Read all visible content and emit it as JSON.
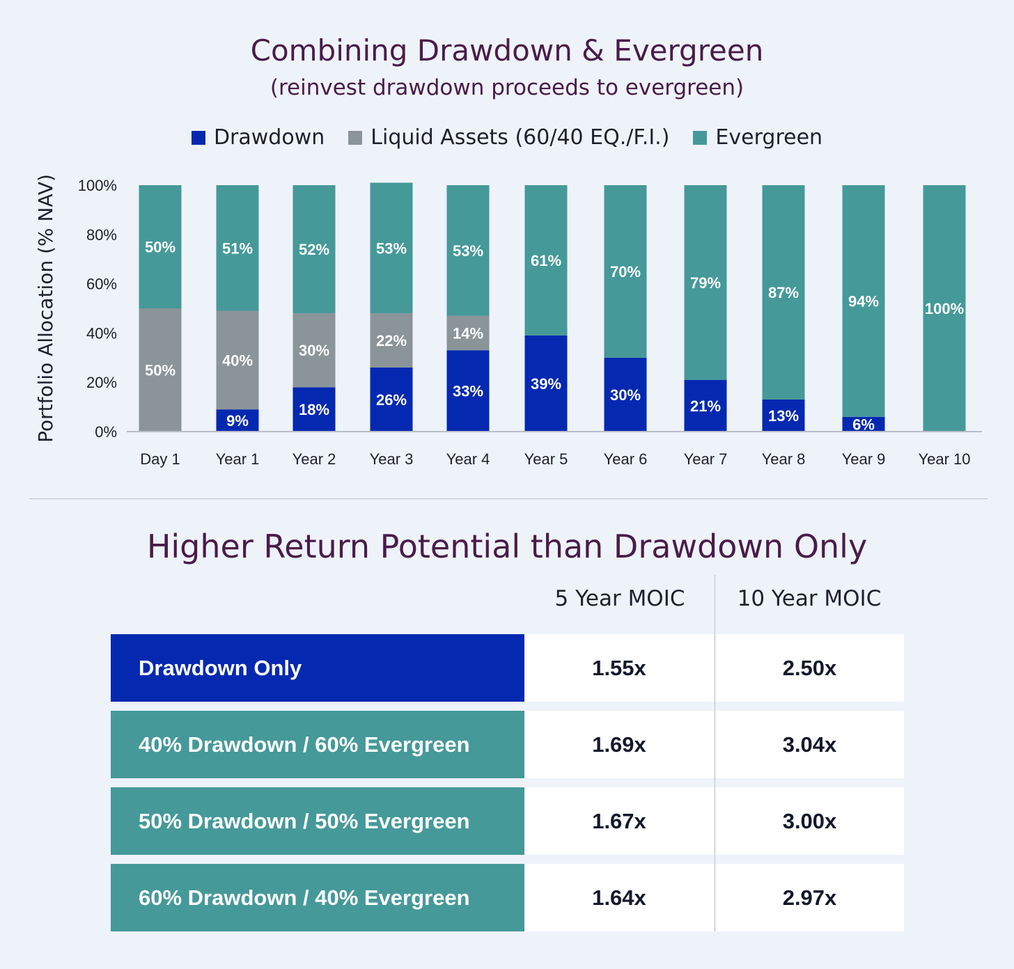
{
  "chart_data": {
    "type": "bar",
    "stacked": true,
    "title": "Combining Drawdown & Evergreen",
    "subtitle": "(reinvest drawdown proceeds to evergreen)",
    "ylabel": "Portfolio Allocation (% NAV)",
    "xlabel": "",
    "ylim": [
      0,
      100
    ],
    "yticks": [
      "0%",
      "20%",
      "40%",
      "60%",
      "80%",
      "100%"
    ],
    "legend_position": "top",
    "categories": [
      "Day 1",
      "Year 1",
      "Year 2",
      "Year 3",
      "Year 4",
      "Year 5",
      "Year 6",
      "Year 7",
      "Year 8",
      "Year 9",
      "Year 10"
    ],
    "series": [
      {
        "name": "Drawdown",
        "color": "#0429b0",
        "values": [
          0,
          9,
          18,
          26,
          33,
          39,
          30,
          21,
          13,
          6,
          0
        ]
      },
      {
        "name": "Liquid Assets (60/40 EQ./F.I.)",
        "color": "#8a9499",
        "values": [
          50,
          40,
          30,
          22,
          14,
          0,
          0,
          0,
          0,
          0,
          0
        ]
      },
      {
        "name": "Evergreen",
        "color": "#469999",
        "values": [
          50,
          51,
          52,
          53,
          53,
          61,
          70,
          79,
          87,
          94,
          100
        ]
      }
    ]
  },
  "table": {
    "title": "Higher Return Potential than Drawdown Only",
    "columns": [
      "5 Year MOIC",
      "10 Year MOIC"
    ],
    "rows": [
      {
        "label": "Drawdown Only",
        "color": "#0429b0",
        "values": [
          "1.55x",
          "2.50x"
        ]
      },
      {
        "label": "40% Drawdown / 60% Evergreen",
        "color": "#469999",
        "values": [
          "1.69x",
          "3.04x"
        ]
      },
      {
        "label": "50% Drawdown / 50% Evergreen",
        "color": "#469999",
        "values": [
          "1.67x",
          "3.00x"
        ]
      },
      {
        "label": "60% Drawdown / 40% Evergreen",
        "color": "#469999",
        "values": [
          "1.64x",
          "2.97x"
        ]
      }
    ]
  }
}
